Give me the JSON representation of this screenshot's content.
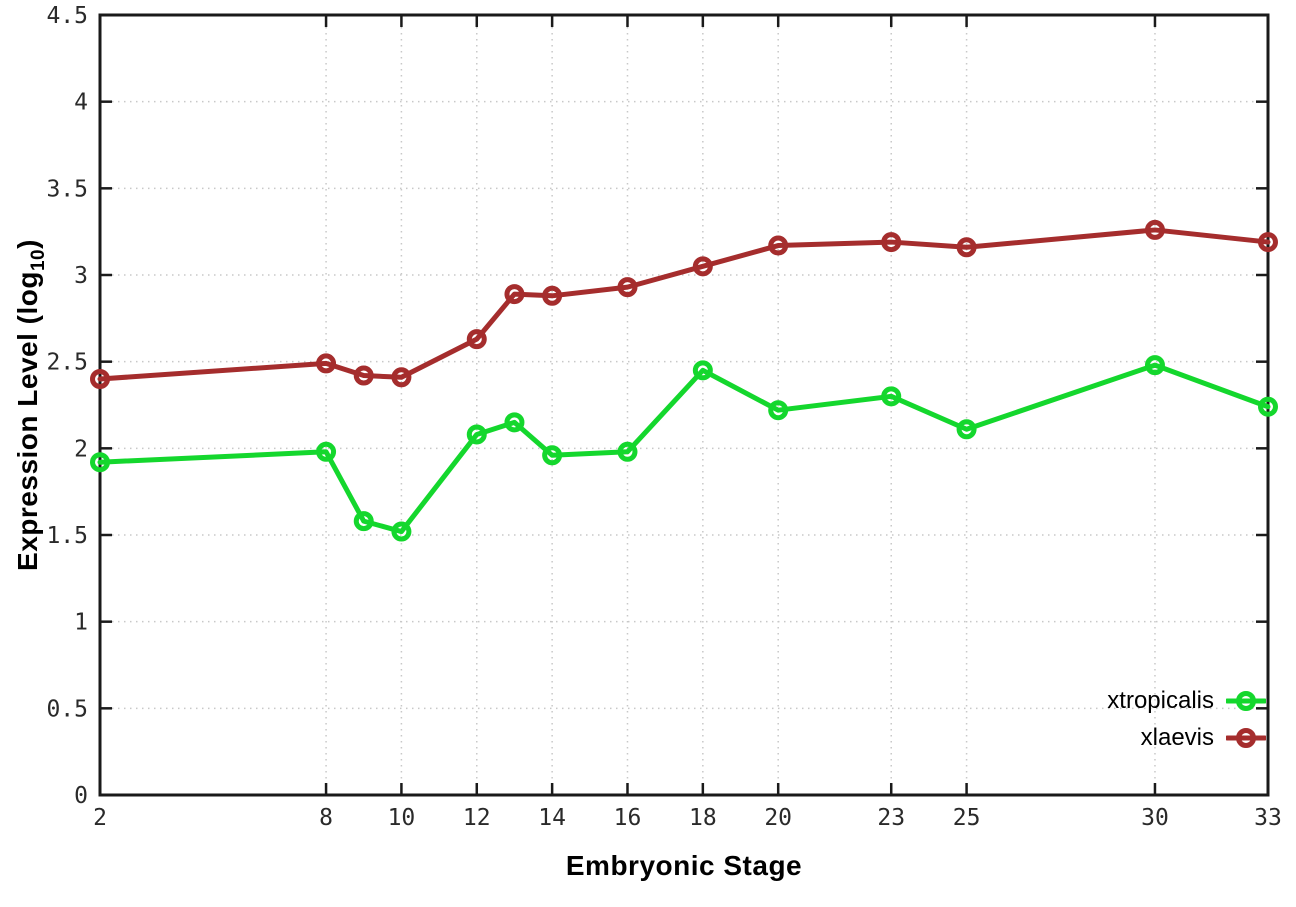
{
  "chart_data": {
    "type": "line",
    "title": "",
    "xlabel": "Embryonic Stage",
    "ylabel": "Expression Level (log10)",
    "ylabel_parts": {
      "main": "Expression Level (log",
      "sub": "10",
      "close": ")"
    },
    "x": [
      2,
      8,
      9,
      10,
      12,
      13,
      14,
      16,
      18,
      20,
      23,
      25,
      30,
      33
    ],
    "xlim": [
      2,
      33
    ],
    "ylim": [
      0,
      4.5
    ],
    "xticks": [
      2,
      8,
      10,
      12,
      14,
      16,
      18,
      20,
      23,
      25,
      30,
      33
    ],
    "yticks": [
      0,
      0.5,
      1,
      1.5,
      2,
      2.5,
      3,
      3.5,
      4,
      4.5
    ],
    "grid": true,
    "legend_position": "bottom-right",
    "marker": "open-circle",
    "series": [
      {
        "name": "xtropicalis",
        "color": "#14d72d",
        "values": [
          1.92,
          1.98,
          1.58,
          1.52,
          2.08,
          2.15,
          1.96,
          1.98,
          2.45,
          2.22,
          2.3,
          2.11,
          2.48,
          2.24
        ]
      },
      {
        "name": "xlaevis",
        "color": "#a52d2d",
        "values": [
          2.4,
          2.49,
          2.42,
          2.41,
          2.63,
          2.89,
          2.88,
          2.93,
          3.05,
          3.17,
          3.19,
          3.16,
          3.26,
          3.19
        ]
      }
    ]
  },
  "styles": {
    "background": "#ffffff",
    "grid_color": "#c8c8c8",
    "border_color": "#1a1a1a",
    "tick_text_color": "#2a2a2a"
  }
}
